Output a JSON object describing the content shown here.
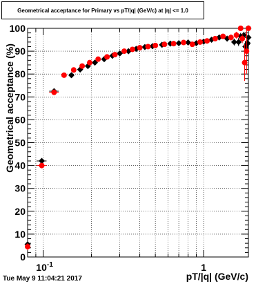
{
  "chart_data": {
    "type": "scatter",
    "title": "Geometrical acceptance for Primary vs pT/|q| (GeV/c) at |η| <= 1.0",
    "xlabel": "pT/|q| (GeV/c)",
    "ylabel": "Geometrical acceptance (%)",
    "x_scale": "log",
    "xlim": [
      0.08,
      1.9
    ],
    "ylim": [
      0,
      100
    ],
    "y_ticks": [
      "0",
      "10",
      "20",
      "30",
      "40",
      "50",
      "60",
      "70",
      "80",
      "90",
      "100"
    ],
    "x_tick_labels": [
      {
        "value": 0.1,
        "label": "10^-1"
      },
      {
        "value": 1,
        "label": "1"
      }
    ],
    "grid": true,
    "colors": {
      "series_a": "#000000",
      "series_b": "#ff0000"
    },
    "series": [
      {
        "marker": "diamond",
        "color": "#000000",
        "points": [
          {
            "x": 0.08,
            "y": 5.5,
            "ey": 1.5
          },
          {
            "x": 0.098,
            "y": 42.0,
            "ey": 1.2,
            "ex": 0.007
          },
          {
            "x": 0.117,
            "y": 72.5,
            "ey": 1.0,
            "ex": 0.008
          },
          {
            "x": 0.15,
            "y": 79.5,
            "ey": 0.6
          },
          {
            "x": 0.17,
            "y": 82.0,
            "ey": 0.5
          },
          {
            "x": 0.19,
            "y": 83.5,
            "ey": 0.5
          },
          {
            "x": 0.21,
            "y": 85.0,
            "ey": 0.5
          },
          {
            "x": 0.24,
            "y": 86.5,
            "ey": 0.5
          },
          {
            "x": 0.27,
            "y": 88.0,
            "ey": 0.5
          },
          {
            "x": 0.3,
            "y": 89.0,
            "ey": 0.5
          },
          {
            "x": 0.34,
            "y": 90.0,
            "ey": 0.5
          },
          {
            "x": 0.38,
            "y": 91.0,
            "ey": 0.5
          },
          {
            "x": 0.43,
            "y": 91.8,
            "ey": 0.5
          },
          {
            "x": 0.48,
            "y": 92.2,
            "ey": 0.5
          },
          {
            "x": 0.55,
            "y": 92.8,
            "ey": 0.6
          },
          {
            "x": 0.62,
            "y": 93.3,
            "ey": 0.6
          },
          {
            "x": 0.7,
            "y": 93.5,
            "ey": 0.7
          },
          {
            "x": 0.8,
            "y": 93.8,
            "ey": 0.7
          },
          {
            "x": 0.9,
            "y": 93.5,
            "ey": 0.8
          },
          {
            "x": 1.0,
            "y": 94.2,
            "ey": 0.8
          },
          {
            "x": 1.12,
            "y": 95.0,
            "ey": 0.9
          },
          {
            "x": 1.25,
            "y": 96.0,
            "ey": 1.0
          },
          {
            "x": 1.4,
            "y": 95.5,
            "ey": 1.2
          },
          {
            "x": 1.55,
            "y": 94.0,
            "ey": 1.5
          },
          {
            "x": 1.7,
            "y": 96.5,
            "ey": 1.5
          },
          {
            "x": 1.78,
            "y": 97.0,
            "ey": 1.5
          },
          {
            "x": 1.9,
            "y": 96.0,
            "ey": 1.8
          },
          {
            "x": 1.86,
            "y": 93.0,
            "ey": 2.0
          },
          {
            "x": 1.82,
            "y": 92.0,
            "ey": 2.5
          },
          {
            "x": 1.88,
            "y": 93.5,
            "ey": 2.5
          },
          {
            "x": 1.9,
            "y": 100.0,
            "ey": 0
          },
          {
            "x": 1.65,
            "y": 94.0,
            "ey": 1.8
          }
        ]
      },
      {
        "marker": "circle",
        "color": "#ff0000",
        "points": [
          {
            "x": 0.08,
            "y": 4.5,
            "ey": 1.5
          },
          {
            "x": 0.098,
            "y": 40.0,
            "ey": 1.2,
            "ex": 0.007
          },
          {
            "x": 0.117,
            "y": 72.0,
            "ey": 1.0,
            "ex": 0.008
          },
          {
            "x": 0.135,
            "y": 79.5,
            "ey": 0.7
          },
          {
            "x": 0.155,
            "y": 81.8,
            "ey": 0.6
          },
          {
            "x": 0.175,
            "y": 83.5,
            "ey": 0.5
          },
          {
            "x": 0.195,
            "y": 85.0,
            "ey": 0.5
          },
          {
            "x": 0.22,
            "y": 86.5,
            "ey": 0.5
          },
          {
            "x": 0.25,
            "y": 87.5,
            "ey": 0.5
          },
          {
            "x": 0.28,
            "y": 88.5,
            "ey": 0.5
          },
          {
            "x": 0.32,
            "y": 90.0,
            "ey": 0.5
          },
          {
            "x": 0.36,
            "y": 90.8,
            "ey": 0.5
          },
          {
            "x": 0.4,
            "y": 91.5,
            "ey": 0.5
          },
          {
            "x": 0.45,
            "y": 92.0,
            "ey": 0.5
          },
          {
            "x": 0.5,
            "y": 92.5,
            "ey": 0.5
          },
          {
            "x": 0.57,
            "y": 93.0,
            "ey": 0.6
          },
          {
            "x": 0.65,
            "y": 93.3,
            "ey": 0.6
          },
          {
            "x": 0.75,
            "y": 93.8,
            "ey": 0.7
          },
          {
            "x": 0.85,
            "y": 93.0,
            "ey": 0.8
          },
          {
            "x": 0.95,
            "y": 94.0,
            "ey": 0.8
          },
          {
            "x": 1.05,
            "y": 94.5,
            "ey": 0.9
          },
          {
            "x": 1.18,
            "y": 95.5,
            "ey": 1.0
          },
          {
            "x": 1.32,
            "y": 96.5,
            "ey": 1.1
          },
          {
            "x": 1.48,
            "y": 96.0,
            "ey": 1.3
          },
          {
            "x": 1.6,
            "y": 97.0,
            "ey": 1.5
          },
          {
            "x": 1.7,
            "y": 100.0,
            "ey": 0
          },
          {
            "x": 1.74,
            "y": 95.5,
            "ey": 2.0
          },
          {
            "x": 1.8,
            "y": 85.0,
            "ey": 8.0
          },
          {
            "x": 1.85,
            "y": 90.0,
            "ey": 10.0
          },
          {
            "x": 1.9,
            "y": 100.0,
            "ey": 0
          }
        ]
      }
    ]
  },
  "timestamp": "Tue May  9 11:04:21 2017"
}
